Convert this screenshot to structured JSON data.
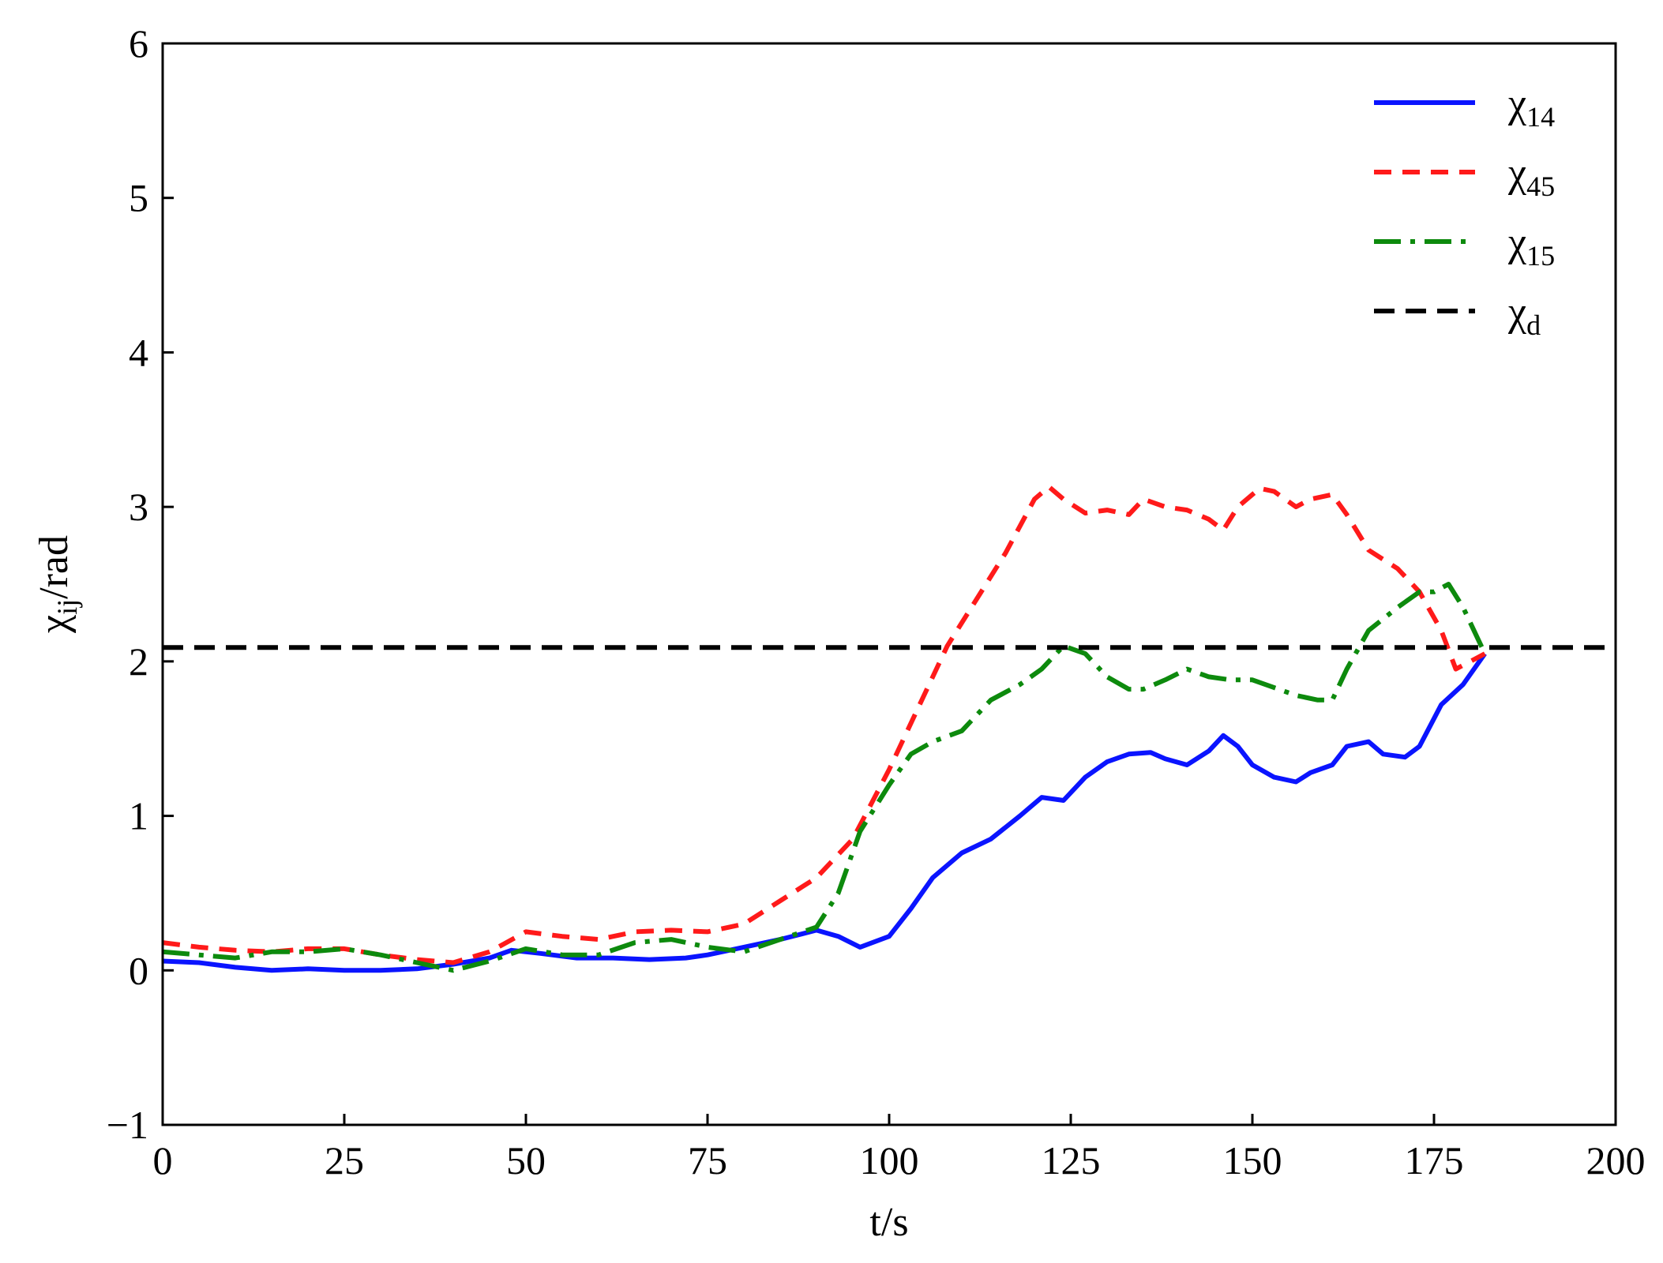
{
  "chart_data": {
    "type": "line",
    "title": "",
    "xlabel": "t/s",
    "ylabel": {
      "base": "χ",
      "sub": "ij",
      "suffix": "/rad"
    },
    "xlim": [
      0,
      200
    ],
    "ylim": [
      -1,
      6
    ],
    "xticks": [
      0,
      25,
      50,
      75,
      100,
      125,
      150,
      175,
      200
    ],
    "xtick_labels": [
      "0",
      "25",
      "50",
      "75",
      "100",
      "125",
      "150",
      "175",
      "200"
    ],
    "yticks": [
      -1,
      0,
      1,
      2,
      3,
      4,
      5,
      6
    ],
    "ytick_labels": [
      "−1",
      "0",
      "1",
      "2",
      "3",
      "4",
      "5",
      "6"
    ],
    "grid": false,
    "legend_position": "top-right",
    "series": [
      {
        "name": "χ14",
        "base": "χ",
        "sub": "14",
        "color": "#0a14ff",
        "dash": "solid",
        "x": [
          0,
          5,
          10,
          15,
          20,
          25,
          30,
          35,
          40,
          45,
          48,
          52,
          57,
          62,
          67,
          72,
          75,
          80,
          85,
          90,
          93,
          96,
          100,
          103,
          106,
          110,
          114,
          118,
          121,
          124,
          127,
          130,
          133,
          136,
          138,
          141,
          144,
          146,
          148,
          150,
          153,
          156,
          158,
          161,
          163,
          166,
          168,
          171,
          173,
          176,
          179,
          182
        ],
        "y": [
          0.06,
          0.05,
          0.02,
          0.0,
          0.01,
          0.0,
          0.0,
          0.01,
          0.04,
          0.08,
          0.13,
          0.11,
          0.08,
          0.08,
          0.07,
          0.08,
          0.1,
          0.15,
          0.2,
          0.26,
          0.22,
          0.15,
          0.22,
          0.4,
          0.6,
          0.76,
          0.85,
          1.0,
          1.12,
          1.1,
          1.25,
          1.35,
          1.4,
          1.41,
          1.37,
          1.33,
          1.42,
          1.52,
          1.45,
          1.33,
          1.25,
          1.22,
          1.28,
          1.33,
          1.45,
          1.48,
          1.4,
          1.38,
          1.45,
          1.72,
          1.85,
          2.05
        ]
      },
      {
        "name": "χ45",
        "base": "χ",
        "sub": "45",
        "color": "#ff1a1a",
        "dash": "dashed",
        "x": [
          0,
          5,
          10,
          15,
          20,
          25,
          30,
          35,
          40,
          45,
          50,
          55,
          60,
          65,
          70,
          75,
          80,
          85,
          90,
          95,
          100,
          105,
          108,
          112,
          116,
          120,
          122,
          124,
          127,
          130,
          133,
          135,
          138,
          141,
          144,
          146,
          148,
          151,
          153,
          156,
          158,
          161,
          163,
          166,
          170,
          173,
          176,
          178,
          180,
          182
        ],
        "y": [
          0.18,
          0.15,
          0.13,
          0.12,
          0.14,
          0.14,
          0.1,
          0.07,
          0.05,
          0.12,
          0.25,
          0.22,
          0.2,
          0.25,
          0.26,
          0.25,
          0.3,
          0.45,
          0.6,
          0.85,
          1.3,
          1.8,
          2.1,
          2.4,
          2.7,
          3.05,
          3.13,
          3.05,
          2.96,
          2.98,
          2.95,
          3.05,
          3.0,
          2.98,
          2.92,
          2.85,
          3.0,
          3.12,
          3.1,
          3.0,
          3.05,
          3.08,
          2.95,
          2.72,
          2.6,
          2.45,
          2.2,
          1.95,
          2.0,
          2.05
        ]
      },
      {
        "name": "χ15",
        "base": "χ",
        "sub": "15",
        "color": "#0d8a0d",
        "dash": "dashdot",
        "x": [
          0,
          5,
          10,
          15,
          20,
          25,
          30,
          35,
          40,
          45,
          50,
          55,
          60,
          65,
          70,
          75,
          80,
          85,
          90,
          93,
          96,
          100,
          103,
          106,
          110,
          114,
          118,
          121,
          124,
          127,
          130,
          133,
          135,
          138,
          141,
          144,
          147,
          150,
          153,
          156,
          159,
          161,
          163,
          166,
          170,
          173,
          175,
          177,
          179,
          182
        ],
        "y": [
          0.12,
          0.1,
          0.08,
          0.12,
          0.12,
          0.14,
          0.1,
          0.05,
          0.0,
          0.06,
          0.14,
          0.1,
          0.1,
          0.18,
          0.2,
          0.15,
          0.12,
          0.2,
          0.28,
          0.5,
          0.9,
          1.2,
          1.4,
          1.48,
          1.55,
          1.75,
          1.85,
          1.95,
          2.1,
          2.05,
          1.9,
          1.82,
          1.82,
          1.88,
          1.95,
          1.9,
          1.88,
          1.88,
          1.83,
          1.78,
          1.75,
          1.75,
          1.95,
          2.2,
          2.35,
          2.45,
          2.45,
          2.5,
          2.35,
          2.05
        ]
      },
      {
        "name": "χd",
        "base": "χ",
        "sub": "d",
        "color": "#000000",
        "dash": "longdash",
        "x": [
          0,
          200
        ],
        "y": [
          2.09,
          2.09
        ]
      }
    ]
  }
}
